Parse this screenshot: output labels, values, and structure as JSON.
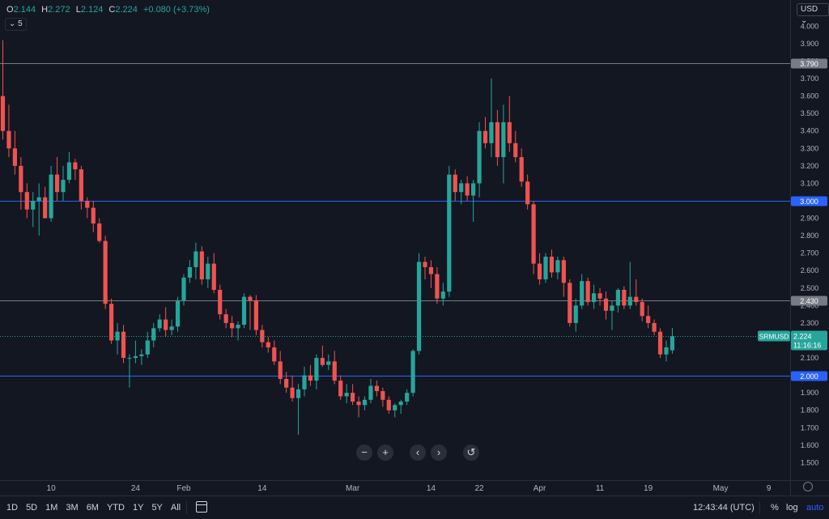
{
  "header": {
    "open_label": "O",
    "open": "2.144",
    "high_label": "H",
    "high": "2.272",
    "low_label": "L",
    "low": "2.124",
    "close_label": "C",
    "close": "2.224",
    "change": "+0.080 (+3.73%)",
    "indicator_toggle": "5",
    "currency": "USD"
  },
  "chart_data": {
    "type": "candlestick",
    "symbol": "SRMUSD",
    "last_price": "2.224",
    "countdown": "11:16:16",
    "y_range": [
      1.4,
      4.15
    ],
    "y_ticks": [
      "1.500",
      "1.600",
      "1.700",
      "1.800",
      "1.900",
      "2.000",
      "2.100",
      "2.200",
      "2.300",
      "2.400",
      "2.500",
      "2.600",
      "2.700",
      "2.800",
      "2.900",
      "3.000",
      "3.100",
      "3.200",
      "3.300",
      "3.400",
      "3.500",
      "3.600",
      "3.700",
      "3.800",
      "3.900",
      "4.000",
      "4.100"
    ],
    "x_labels": [
      {
        "label": "10",
        "bar": 8
      },
      {
        "label": "24",
        "bar": 22
      },
      {
        "label": "Feb",
        "bar": 30
      },
      {
        "label": "14",
        "bar": 43
      },
      {
        "label": "Mar",
        "bar": 58
      },
      {
        "label": "14",
        "bar": 71
      },
      {
        "label": "22",
        "bar": 79
      },
      {
        "label": "Apr",
        "bar": 89
      },
      {
        "label": "11",
        "bar": 99
      },
      {
        "label": "19",
        "bar": 107
      },
      {
        "label": "May",
        "bar": 119
      },
      {
        "label": "9",
        "bar": 127
      }
    ],
    "horizontal_lines": [
      {
        "price": 3.79,
        "label": "3.790",
        "color": "#787b86"
      },
      {
        "price": 3.0,
        "label": "3.000",
        "color": "#2962ff"
      },
      {
        "price": 2.43,
        "label": "2.430",
        "color": "#787b86"
      },
      {
        "price": 2.0,
        "label": "2.000",
        "color": "#2962ff"
      }
    ],
    "candles": [
      [
        3.6,
        3.92,
        3.35,
        3.4
      ],
      [
        3.4,
        3.55,
        3.25,
        3.3
      ],
      [
        3.3,
        3.4,
        3.15,
        3.2
      ],
      [
        3.2,
        3.25,
        2.95,
        3.05
      ],
      [
        3.05,
        3.1,
        2.9,
        2.95
      ],
      [
        2.95,
        3.05,
        2.85,
        3.0
      ],
      [
        3.0,
        3.1,
        2.8,
        3.02
      ],
      [
        3.02,
        3.08,
        2.9,
        2.9
      ],
      [
        2.9,
        3.2,
        2.88,
        3.15
      ],
      [
        3.15,
        3.25,
        3.0,
        3.05
      ],
      [
        3.05,
        3.2,
        3.0,
        3.12
      ],
      [
        3.12,
        3.28,
        3.1,
        3.22
      ],
      [
        3.22,
        3.24,
        3.12,
        3.18
      ],
      [
        3.18,
        3.2,
        2.95,
        3.0
      ],
      [
        3.0,
        3.02,
        2.9,
        2.96
      ],
      [
        2.96,
        3.0,
        2.82,
        2.87
      ],
      [
        2.87,
        2.9,
        2.76,
        2.77
      ],
      [
        2.77,
        2.8,
        2.38,
        2.41
      ],
      [
        2.41,
        2.44,
        2.18,
        2.2
      ],
      [
        2.2,
        2.3,
        2.12,
        2.25
      ],
      [
        2.25,
        2.29,
        2.07,
        2.1
      ],
      [
        2.1,
        2.12,
        1.93,
        2.1
      ],
      [
        2.1,
        2.2,
        2.07,
        2.11
      ],
      [
        2.11,
        2.15,
        2.06,
        2.12
      ],
      [
        2.12,
        2.25,
        2.1,
        2.2
      ],
      [
        2.2,
        2.3,
        2.16,
        2.27
      ],
      [
        2.27,
        2.35,
        2.25,
        2.32
      ],
      [
        2.32,
        2.39,
        2.22,
        2.26
      ],
      [
        2.26,
        2.32,
        2.23,
        2.28
      ],
      [
        2.28,
        2.45,
        2.25,
        2.43
      ],
      [
        2.43,
        2.58,
        2.4,
        2.56
      ],
      [
        2.56,
        2.66,
        2.53,
        2.62
      ],
      [
        2.62,
        2.76,
        2.55,
        2.71
      ],
      [
        2.71,
        2.74,
        2.52,
        2.55
      ],
      [
        2.55,
        2.68,
        2.5,
        2.64
      ],
      [
        2.64,
        2.7,
        2.47,
        2.49
      ],
      [
        2.49,
        2.52,
        2.32,
        2.35
      ],
      [
        2.35,
        2.38,
        2.27,
        2.3
      ],
      [
        2.3,
        2.34,
        2.22,
        2.27
      ],
      [
        2.27,
        2.31,
        2.2,
        2.29
      ],
      [
        2.29,
        2.47,
        2.27,
        2.45
      ],
      [
        2.45,
        2.46,
        2.26,
        2.43
      ],
      [
        2.43,
        2.46,
        2.23,
        2.26
      ],
      [
        2.26,
        2.29,
        2.16,
        2.19
      ],
      [
        2.19,
        2.22,
        2.13,
        2.16
      ],
      [
        2.16,
        2.2,
        2.06,
        2.08
      ],
      [
        2.08,
        2.14,
        1.95,
        1.98
      ],
      [
        1.98,
        2.02,
        1.9,
        1.93
      ],
      [
        1.93,
        2.0,
        1.85,
        1.87
      ],
      [
        1.87,
        1.95,
        1.66,
        1.92
      ],
      [
        1.92,
        2.05,
        1.88,
        2.0
      ],
      [
        2.0,
        2.06,
        1.94,
        1.97
      ],
      [
        1.97,
        2.12,
        1.92,
        2.1
      ],
      [
        2.1,
        2.17,
        2.05,
        2.06
      ],
      [
        2.06,
        2.12,
        2.03,
        2.08
      ],
      [
        2.08,
        2.14,
        1.95,
        1.97
      ],
      [
        1.97,
        2.0,
        1.86,
        1.88
      ],
      [
        1.88,
        1.95,
        1.84,
        1.9
      ],
      [
        1.9,
        1.95,
        1.83,
        1.85
      ],
      [
        1.85,
        1.88,
        1.76,
        1.83
      ],
      [
        1.83,
        1.88,
        1.8,
        1.86
      ],
      [
        1.86,
        1.98,
        1.84,
        1.94
      ],
      [
        1.94,
        1.97,
        1.88,
        1.91
      ],
      [
        1.91,
        1.93,
        1.82,
        1.86
      ],
      [
        1.86,
        1.88,
        1.78,
        1.8
      ],
      [
        1.8,
        1.84,
        1.76,
        1.83
      ],
      [
        1.83,
        1.86,
        1.78,
        1.85
      ],
      [
        1.85,
        1.92,
        1.83,
        1.9
      ],
      [
        1.9,
        2.15,
        1.88,
        2.14
      ],
      [
        2.14,
        2.7,
        2.12,
        2.65
      ],
      [
        2.65,
        2.68,
        2.55,
        2.62
      ],
      [
        2.62,
        2.66,
        2.5,
        2.58
      ],
      [
        2.58,
        2.62,
        2.41,
        2.44
      ],
      [
        2.44,
        2.53,
        2.4,
        2.48
      ],
      [
        2.48,
        3.2,
        2.45,
        3.15
      ],
      [
        3.15,
        3.18,
        3.0,
        3.05
      ],
      [
        3.05,
        3.12,
        2.98,
        3.1
      ],
      [
        3.1,
        3.14,
        3.0,
        3.03
      ],
      [
        3.03,
        3.12,
        2.88,
        3.1
      ],
      [
        3.1,
        3.45,
        3.02,
        3.4
      ],
      [
        3.4,
        3.48,
        3.3,
        3.33
      ],
      [
        3.33,
        3.7,
        3.25,
        3.45
      ],
      [
        3.45,
        3.52,
        3.2,
        3.25
      ],
      [
        3.25,
        3.55,
        3.1,
        3.45
      ],
      [
        3.45,
        3.6,
        3.28,
        3.33
      ],
      [
        3.33,
        3.4,
        3.22,
        3.25
      ],
      [
        3.25,
        3.3,
        3.08,
        3.11
      ],
      [
        3.11,
        3.15,
        2.95,
        2.98
      ],
      [
        2.98,
        3.0,
        2.58,
        2.64
      ],
      [
        2.64,
        2.7,
        2.52,
        2.55
      ],
      [
        2.55,
        2.7,
        2.53,
        2.68
      ],
      [
        2.68,
        2.72,
        2.56,
        2.59
      ],
      [
        2.59,
        2.68,
        2.55,
        2.66
      ],
      [
        2.66,
        2.68,
        2.45,
        2.53
      ],
      [
        2.53,
        2.55,
        2.28,
        2.3
      ],
      [
        2.3,
        2.44,
        2.25,
        2.4
      ],
      [
        2.4,
        2.58,
        2.38,
        2.54
      ],
      [
        2.54,
        2.56,
        2.4,
        2.42
      ],
      [
        2.42,
        2.52,
        2.38,
        2.47
      ],
      [
        2.47,
        2.5,
        2.4,
        2.44
      ],
      [
        2.44,
        2.48,
        2.32,
        2.37
      ],
      [
        2.37,
        2.43,
        2.26,
        2.4
      ],
      [
        2.4,
        2.5,
        2.36,
        2.49
      ],
      [
        2.49,
        2.51,
        2.38,
        2.4
      ],
      [
        2.4,
        2.65,
        2.38,
        2.45
      ],
      [
        2.45,
        2.55,
        2.4,
        2.42
      ],
      [
        2.42,
        2.44,
        2.31,
        2.34
      ],
      [
        2.34,
        2.4,
        2.27,
        2.3
      ],
      [
        2.3,
        2.32,
        2.23,
        2.25
      ],
      [
        2.25,
        2.27,
        2.1,
        2.12
      ],
      [
        2.12,
        2.2,
        2.08,
        2.16
      ],
      [
        2.144,
        2.272,
        2.124,
        2.224
      ]
    ]
  },
  "time_ranges": [
    "1D",
    "5D",
    "1M",
    "3M",
    "6M",
    "YTD",
    "1Y",
    "5Y",
    "All"
  ],
  "footer": {
    "time": "12:43:44 (UTC)",
    "percent": "%",
    "log": "log",
    "auto": "auto"
  },
  "controls": {
    "zoom_out": "−",
    "zoom_in": "+",
    "scroll_left": "‹",
    "scroll_right": "›",
    "reset": "↺"
  },
  "colors": {
    "up": "#26a69a",
    "down": "#ef5350",
    "grid": "#1e222d",
    "axis_text": "#b2b5be",
    "last_price_bg": "#26a69a"
  }
}
